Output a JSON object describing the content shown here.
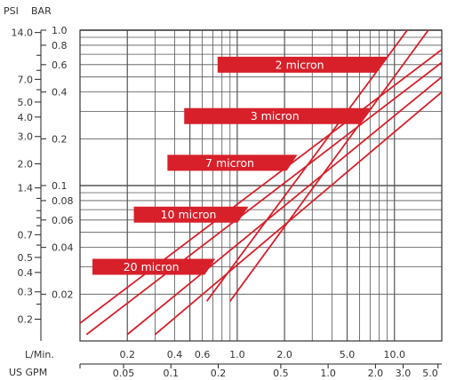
{
  "chart_data": {
    "type": "line",
    "x_axis_top": {
      "label": "L/Min.",
      "scale": "log",
      "range": [
        0.1,
        20
      ],
      "ticks": [
        {
          "value": 0.2,
          "label": "0.2"
        },
        {
          "value": 0.4,
          "label": "0.4"
        },
        {
          "value": 0.6,
          "label": "0.6"
        },
        {
          "value": 1.0,
          "label": "1.0"
        },
        {
          "value": 2.0,
          "label": "2.0"
        },
        {
          "value": 5.0,
          "label": "5.0"
        },
        {
          "value": 10.0,
          "label": "10.0"
        }
      ]
    },
    "x_axis_bottom": {
      "label": "US GPM",
      "scale": "log",
      "ticks": [
        {
          "value": 0.05,
          "label": "0.05"
        },
        {
          "value": 0.1,
          "label": "0.1"
        },
        {
          "value": 0.2,
          "label": "0.2"
        },
        {
          "value": 0.5,
          "label": "0.5"
        },
        {
          "value": 1.0,
          "label": "1.0"
        },
        {
          "value": 2.0,
          "label": "2.0"
        },
        {
          "value": 3.0,
          "label": "3.0"
        },
        {
          "value": 5.0,
          "label": "5.0"
        }
      ]
    },
    "y_axis_psi": {
      "label": "PSI",
      "scale": "log",
      "ticks": [
        {
          "value": 14.0,
          "label": "14.0"
        },
        {
          "value": 7.0,
          "label": "7.0"
        },
        {
          "value": 5.0,
          "label": "5.0"
        },
        {
          "value": 4.0,
          "label": "4.0"
        },
        {
          "value": 3.0,
          "label": "3.0"
        },
        {
          "value": 2.0,
          "label": "2.0"
        },
        {
          "value": 1.4,
          "label": "1.4"
        },
        {
          "value": 0.7,
          "label": "0.7"
        },
        {
          "value": 0.5,
          "label": "0.5"
        },
        {
          "value": 0.4,
          "label": "0.4"
        },
        {
          "value": 0.3,
          "label": "0.3"
        },
        {
          "value": 0.2,
          "label": "0.2"
        }
      ]
    },
    "y_axis_bar": {
      "label": "BAR",
      "scale": "log",
      "range": [
        0.01,
        1.0
      ],
      "ticks": [
        {
          "value": 1.0,
          "label": "1.0"
        },
        {
          "value": 0.8,
          "label": "0.8"
        },
        {
          "value": 0.6,
          "label": "0.6"
        },
        {
          "value": 0.4,
          "label": "0.4"
        },
        {
          "value": 0.2,
          "label": "0.2"
        },
        {
          "value": 0.1,
          "label": "0.1"
        },
        {
          "value": 0.08,
          "label": "0.08"
        },
        {
          "value": 0.06,
          "label": "0.06"
        },
        {
          "value": 0.04,
          "label": "0.04"
        },
        {
          "value": 0.02,
          "label": "0.02"
        }
      ]
    },
    "series": [
      {
        "name": "2 micron",
        "points": [
          [
            0.64,
            0.018
          ],
          [
            12.5,
            1.05
          ]
        ]
      },
      {
        "name": "3 micron",
        "points": [
          [
            0.9,
            0.018
          ],
          [
            17.0,
            1.05
          ]
        ]
      },
      {
        "name": "7 micron",
        "points": [
          [
            0.1,
            0.013
          ],
          [
            20.0,
            0.75
          ]
        ]
      },
      {
        "name": "10 micron",
        "points": [
          [
            0.11,
            0.011
          ],
          [
            20.0,
            0.62
          ]
        ]
      },
      {
        "name": "20 micron",
        "points": [
          [
            0.2,
            0.011
          ],
          [
            20.0,
            0.5
          ]
        ]
      },
      {
        "name": "20 micron",
        "points": [
          [
            0.3,
            0.011
          ],
          [
            20.0,
            0.4
          ]
        ]
      }
    ],
    "labels": [
      {
        "text": "2 micron",
        "bar_level": 0.6
      },
      {
        "text": "3 micron",
        "bar_level": 0.28
      },
      {
        "text": "7 micron",
        "bar_level": 0.14
      },
      {
        "text": "10 micron",
        "bar_level": 0.065
      },
      {
        "text": "20 micron",
        "bar_level": 0.03
      }
    ],
    "accent_color": "#d7202a",
    "grid": true
  }
}
